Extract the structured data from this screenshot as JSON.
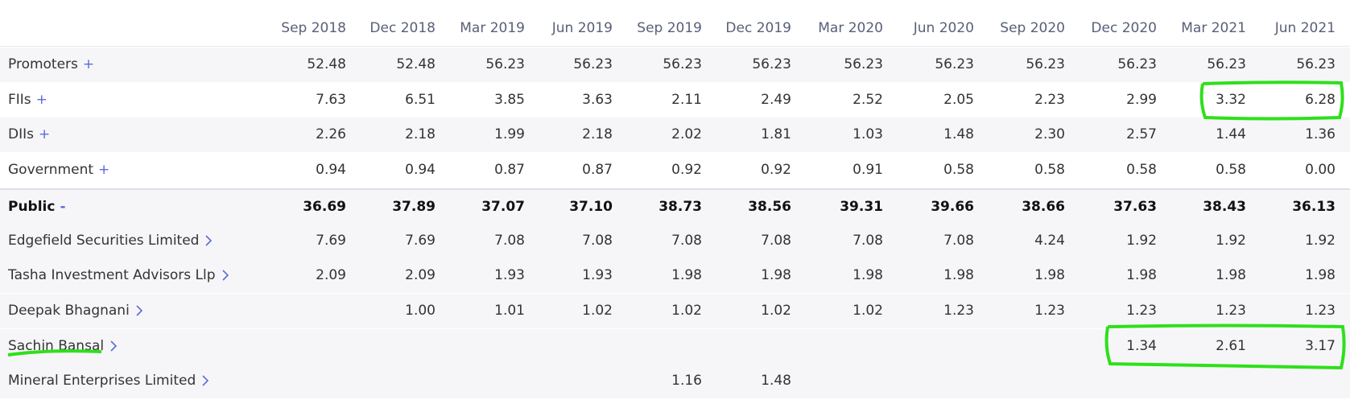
{
  "table": {
    "columns": [
      "Sep 2018",
      "Dec 2018",
      "Mar 2019",
      "Jun 2019",
      "Sep 2019",
      "Dec 2019",
      "Mar 2020",
      "Jun 2020",
      "Sep 2020",
      "Dec 2020",
      "Mar 2021",
      "Jun 2021"
    ],
    "rows": [
      {
        "label": "Promoters",
        "toggle": "+",
        "values": [
          "52.48",
          "52.48",
          "56.23",
          "56.23",
          "56.23",
          "56.23",
          "56.23",
          "56.23",
          "56.23",
          "56.23",
          "56.23",
          "56.23"
        ]
      },
      {
        "label": "FIIs",
        "toggle": "+",
        "values": [
          "7.63",
          "6.51",
          "3.85",
          "3.63",
          "2.11",
          "2.49",
          "2.52",
          "2.05",
          "2.23",
          "2.99",
          "3.32",
          "6.28"
        ]
      },
      {
        "label": "DIIs",
        "toggle": "+",
        "values": [
          "2.26",
          "2.18",
          "1.99",
          "2.18",
          "2.02",
          "1.81",
          "1.03",
          "1.48",
          "2.30",
          "2.57",
          "1.44",
          "1.36"
        ]
      },
      {
        "label": "Government",
        "toggle": "+",
        "values": [
          "0.94",
          "0.94",
          "0.87",
          "0.87",
          "0.92",
          "0.92",
          "0.91",
          "0.58",
          "0.58",
          "0.58",
          "0.58",
          "0.00"
        ]
      },
      {
        "label": "Public",
        "toggle": "-",
        "values": [
          "36.69",
          "37.89",
          "37.07",
          "37.10",
          "38.73",
          "38.56",
          "39.31",
          "39.66",
          "38.66",
          "37.63",
          "38.43",
          "36.13"
        ]
      },
      {
        "label": "Edgefield Securities Limited",
        "values": [
          "7.69",
          "7.69",
          "7.08",
          "7.08",
          "7.08",
          "7.08",
          "7.08",
          "7.08",
          "4.24",
          "1.92",
          "1.92",
          "1.92"
        ]
      },
      {
        "label": "Tasha Investment Advisors Llp",
        "values": [
          "2.09",
          "2.09",
          "1.93",
          "1.93",
          "1.98",
          "1.98",
          "1.98",
          "1.98",
          "1.98",
          "1.98",
          "1.98",
          "1.98"
        ]
      },
      {
        "label": "Deepak Bhagnani",
        "values": [
          null,
          "1.00",
          "1.01",
          "1.02",
          "1.02",
          "1.02",
          "1.02",
          "1.23",
          "1.23",
          "1.23",
          "1.23",
          "1.23"
        ]
      },
      {
        "label": "Sachin Bansal",
        "values": [
          null,
          null,
          null,
          null,
          null,
          null,
          null,
          null,
          null,
          "1.34",
          "2.61",
          "3.17"
        ]
      },
      {
        "label": "Mineral Enterprises Limited",
        "values": [
          null,
          null,
          null,
          null,
          "1.16",
          "1.48",
          null,
          null,
          null,
          null,
          null,
          null
        ]
      }
    ]
  }
}
